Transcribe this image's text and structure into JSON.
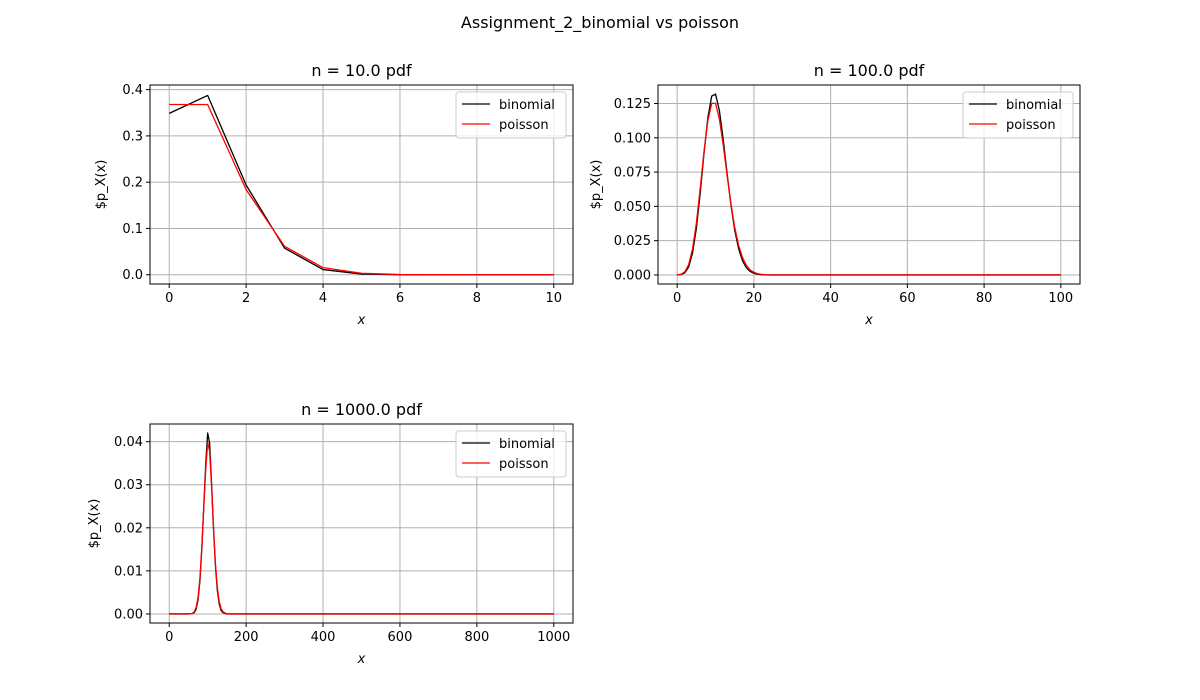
{
  "figure": {
    "title": "Assignment_2_binomial vs poisson"
  },
  "chart_data": [
    {
      "type": "line",
      "title": "n = 10.0 pdf",
      "xlabel": "x",
      "ylabel": "$p_X(x)",
      "xlim": [
        -0.5,
        10.5
      ],
      "ylim": [
        -0.02,
        0.41
      ],
      "xticks": [
        0,
        2,
        4,
        6,
        8,
        10
      ],
      "xtick_labels": [
        "0",
        "2",
        "4",
        "6",
        "8",
        "10"
      ],
      "yticks": [
        0.0,
        0.1,
        0.2,
        0.3,
        0.4
      ],
      "ytick_labels": [
        "0.0",
        "0.1",
        "0.2",
        "0.3",
        "0.4"
      ],
      "grid": true,
      "legend_position": "top-right",
      "series": [
        {
          "name": "binomial",
          "color": "#000000",
          "x": [
            0,
            1,
            2,
            3,
            4,
            5,
            6,
            7,
            8,
            9,
            10
          ],
          "y": [
            0.3487,
            0.3874,
            0.1937,
            0.0574,
            0.0112,
            0.0015,
            0.0001,
            0.0,
            0.0,
            0.0,
            0.0
          ]
        },
        {
          "name": "poisson",
          "color": "#ff0000",
          "x": [
            0,
            1,
            2,
            3,
            4,
            5,
            6,
            7,
            8,
            9,
            10
          ],
          "y": [
            0.3679,
            0.3679,
            0.1839,
            0.0613,
            0.0153,
            0.0031,
            0.0005,
            0.0001,
            0.0,
            0.0,
            0.0
          ]
        }
      ]
    },
    {
      "type": "line",
      "title": "n = 100.0 pdf",
      "xlabel": "x",
      "ylabel": "$p_X(x)",
      "xlim": [
        -5,
        105
      ],
      "ylim": [
        -0.0066,
        0.1385
      ],
      "xticks": [
        0,
        20,
        40,
        60,
        80,
        100
      ],
      "xtick_labels": [
        "0",
        "20",
        "40",
        "60",
        "80",
        "100"
      ],
      "yticks": [
        0.0,
        0.025,
        0.05,
        0.075,
        0.1,
        0.125
      ],
      "ytick_labels": [
        "0.000",
        "0.025",
        "0.050",
        "0.075",
        "0.100",
        "0.125"
      ],
      "grid": true,
      "legend_position": "top-right",
      "series": [
        {
          "name": "binomial",
          "color": "#000000",
          "x": [
            0,
            1,
            2,
            3,
            4,
            5,
            6,
            7,
            8,
            9,
            10,
            11,
            12,
            13,
            14,
            15,
            16,
            17,
            18,
            19,
            20,
            21,
            22,
            23,
            24,
            25,
            30,
            40,
            60,
            80,
            100
          ],
          "y": [
            0.0,
            0.0003,
            0.0016,
            0.0059,
            0.0159,
            0.0339,
            0.0596,
            0.0889,
            0.1148,
            0.1304,
            0.1319,
            0.1199,
            0.0988,
            0.0743,
            0.0513,
            0.0327,
            0.0193,
            0.0106,
            0.0054,
            0.0026,
            0.0012,
            0.0005,
            0.0002,
            0.0001,
            0.0,
            0.0,
            0.0,
            0.0,
            0.0,
            0.0,
            0.0
          ]
        },
        {
          "name": "poisson",
          "color": "#ff0000",
          "x": [
            0,
            1,
            2,
            3,
            4,
            5,
            6,
            7,
            8,
            9,
            10,
            11,
            12,
            13,
            14,
            15,
            16,
            17,
            18,
            19,
            20,
            21,
            22,
            23,
            24,
            25,
            30,
            40,
            60,
            80,
            100
          ],
          "y": [
            0.0,
            0.0005,
            0.0023,
            0.0076,
            0.0189,
            0.0378,
            0.0631,
            0.0901,
            0.1126,
            0.1251,
            0.1251,
            0.1137,
            0.0948,
            0.0729,
            0.0521,
            0.0347,
            0.0217,
            0.0128,
            0.0071,
            0.0037,
            0.0019,
            0.0009,
            0.0004,
            0.0002,
            0.0001,
            0.0,
            0.0,
            0.0,
            0.0,
            0.0,
            0.0
          ]
        }
      ]
    },
    {
      "type": "line",
      "title": "n = 1000.0 pdf",
      "xlabel": "x",
      "ylabel": "$p_X(x)",
      "xlim": [
        -50,
        1050
      ],
      "ylim": [
        -0.0021,
        0.0441
      ],
      "xticks": [
        0,
        200,
        400,
        600,
        800,
        1000
      ],
      "xtick_labels": [
        "0",
        "200",
        "400",
        "600",
        "800",
        "1000"
      ],
      "yticks": [
        0.0,
        0.01,
        0.02,
        0.03,
        0.04
      ],
      "ytick_labels": [
        "0.00",
        "0.01",
        "0.02",
        "0.03",
        "0.04"
      ],
      "grid": true,
      "legend_position": "top-right",
      "series": [
        {
          "name": "binomial",
          "color": "#000000",
          "x": [
            0,
            50,
            60,
            65,
            70,
            75,
            80,
            85,
            90,
            95,
            100,
            105,
            110,
            115,
            120,
            125,
            130,
            135,
            140,
            150,
            200,
            400,
            600,
            800,
            1000
          ],
          "y": [
            0.0,
            0.0,
            0.0001,
            0.0003,
            0.0011,
            0.0033,
            0.0079,
            0.0155,
            0.0253,
            0.0349,
            0.042,
            0.0397,
            0.0305,
            0.0201,
            0.0114,
            0.0055,
            0.0023,
            0.0008,
            0.0003,
            0.0,
            0.0,
            0.0,
            0.0,
            0.0,
            0.0
          ]
        },
        {
          "name": "poisson",
          "color": "#ff0000",
          "x": [
            0,
            50,
            60,
            65,
            70,
            75,
            80,
            85,
            90,
            95,
            100,
            105,
            110,
            115,
            120,
            125,
            130,
            135,
            140,
            150,
            200,
            400,
            600,
            800,
            1000
          ],
          "y": [
            0.0,
            0.0,
            0.0001,
            0.0005,
            0.0015,
            0.0039,
            0.0085,
            0.0159,
            0.025,
            0.0336,
            0.0398,
            0.0378,
            0.0299,
            0.0203,
            0.0119,
            0.0062,
            0.0029,
            0.0012,
            0.0005,
            0.0,
            0.0,
            0.0,
            0.0,
            0.0,
            0.0
          ]
        }
      ]
    }
  ]
}
